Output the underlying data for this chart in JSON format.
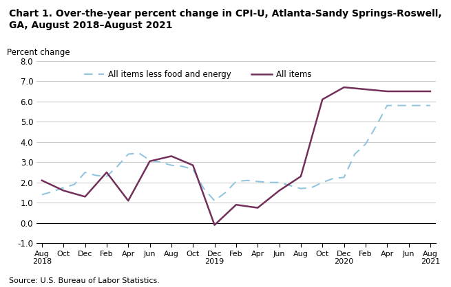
{
  "title": "Chart 1. Over-the-year percent change in CPI-U, Atlanta-Sandy Springs-Roswell,\nGA, August 2018–August 2021",
  "ylabel": "Percent change",
  "source": "Source: U.S. Bureau of Labor Statistics.",
  "ylim": [
    -1.0,
    8.0
  ],
  "yticks": [
    -1.0,
    0.0,
    1.0,
    2.0,
    3.0,
    4.0,
    5.0,
    6.0,
    7.0,
    8.0
  ],
  "x_labels": [
    "Aug\n2018",
    "Oct",
    "Dec",
    "Feb",
    "Apr",
    "Jun",
    "Aug",
    "Oct",
    "Dec\n2019",
    "Feb",
    "Apr",
    "Jun",
    "Aug",
    "Oct",
    "Dec\n2020",
    "Feb",
    "Apr",
    "Jun",
    "Aug\n2021"
  ],
  "all_items_x": [
    0,
    2,
    4,
    6,
    8,
    10,
    12,
    14,
    16,
    18,
    20,
    22,
    24,
    26,
    28,
    30,
    32,
    34,
    36
  ],
  "all_items_y": [
    2.1,
    1.6,
    1.3,
    2.5,
    1.1,
    3.05,
    3.3,
    2.85,
    -0.1,
    0.9,
    0.75,
    1.6,
    2.3,
    6.1,
    6.7,
    6.6,
    6.5,
    6.5,
    6.5
  ],
  "core_items_x": [
    0,
    1,
    2,
    3,
    4,
    5,
    6,
    7,
    8,
    9,
    10,
    11,
    12,
    13,
    14,
    15,
    16,
    17,
    18,
    19,
    20,
    21,
    22,
    23,
    24,
    25,
    26,
    27,
    28,
    29,
    30,
    31,
    32,
    33,
    34,
    35,
    36
  ],
  "core_items_y": [
    1.4,
    1.55,
    1.75,
    1.9,
    2.5,
    2.35,
    2.3,
    2.8,
    3.4,
    3.45,
    3.1,
    3.0,
    2.85,
    2.8,
    2.65,
    1.7,
    1.1,
    1.5,
    2.05,
    2.1,
    2.05,
    2.0,
    2.0,
    1.85,
    1.7,
    1.75,
    2.0,
    2.2,
    2.25,
    3.4,
    3.9,
    4.8,
    5.8,
    5.8,
    5.8,
    5.8,
    5.8
  ],
  "all_items_color": "#722F5A",
  "core_items_color": "#92C5DE",
  "background_color": "#ffffff",
  "grid_color": "#cccccc",
  "legend_label_all": "All items",
  "legend_label_core": "All items less food and energy"
}
